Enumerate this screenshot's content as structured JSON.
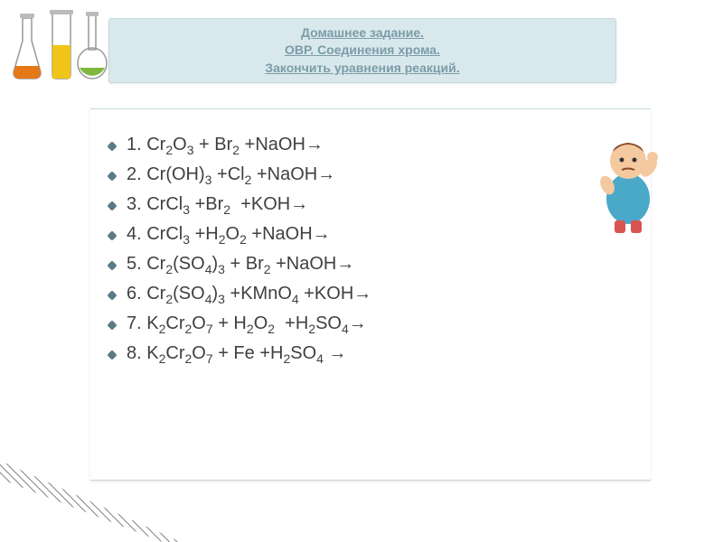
{
  "header": {
    "line1": "Домашнее задание.",
    "line2": "ОВР. Соединения хрома.",
    "line3": "Закончить уравнения реакций."
  },
  "equations": [
    {
      "n": "1",
      "parts": [
        "Cr",
        "2",
        "O",
        "3",
        " + Br",
        "2",
        " +NaOH→"
      ]
    },
    {
      "n": "2",
      "parts": [
        "Cr(OH)",
        "3",
        " +Cl",
        "2",
        " +NaOH→"
      ]
    },
    {
      "n": "3",
      "parts": [
        "CrCl",
        "3",
        " +Br",
        "2",
        "  +KOH→"
      ]
    },
    {
      "n": "4",
      "parts": [
        "CrCl",
        "3",
        " +H",
        "2",
        "O",
        "2",
        " +NaOH→"
      ]
    },
    {
      "n": "5",
      "parts": [
        "Cr",
        "2",
        "(SO",
        "4",
        ")",
        "3",
        " + Br",
        "2",
        " +NaOH→"
      ]
    },
    {
      "n": "6",
      "parts": [
        "Cr",
        "2",
        "(SO",
        "4",
        ")",
        "3",
        " +KMnO",
        "4",
        " +KOH→"
      ]
    },
    {
      "n": "7",
      "parts": [
        "K",
        "2",
        "Cr",
        "2",
        "O",
        "7",
        " + H",
        "2",
        "O",
        "2",
        "  +H",
        "2",
        "SO",
        "4",
        "→"
      ]
    },
    {
      "n": "8",
      "parts": [
        "K",
        "2",
        "Cr",
        "2",
        "O",
        "7",
        " + Fe +H",
        "2",
        "SO",
        "4",
        " →"
      ]
    }
  ],
  "colors": {
    "header_bg": "#d9e8ec",
    "header_text": "#7a9ca8",
    "bullet": "#5a7a85",
    "text": "#404040",
    "flask_orange": "#e67817",
    "flask_yellow": "#f0c419",
    "flask_green": "#7fb83d"
  },
  "styling": {
    "header_fontsize": 14,
    "eq_fontsize": 20,
    "header_underline": true,
    "header_bold": true
  }
}
